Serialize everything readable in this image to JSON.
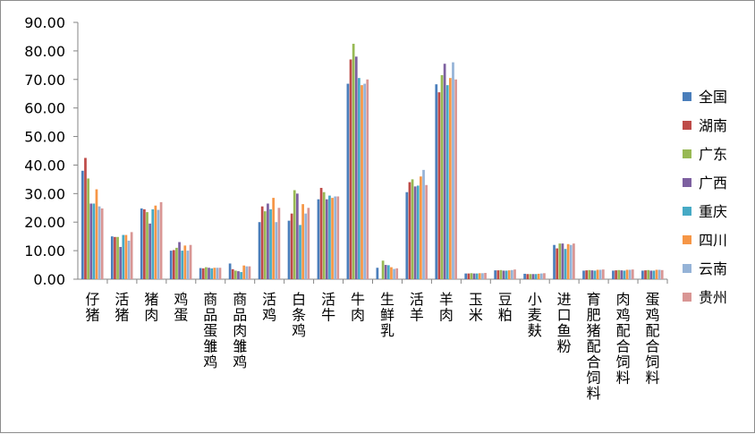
{
  "chart_data": {
    "type": "bar",
    "title": "",
    "xlabel": "",
    "ylabel": "",
    "ylim": [
      0,
      90
    ],
    "yticks": [
      "0.00",
      "10.00",
      "20.00",
      "30.00",
      "40.00",
      "50.00",
      "60.00",
      "70.00",
      "80.00",
      "90.00"
    ],
    "grid": false,
    "legend_position": "right",
    "categories": [
      "仔猪",
      "活猪",
      "猪肉",
      "鸡蛋",
      "商品蛋雏鸡",
      "商品肉雏鸡",
      "活鸡",
      "白条鸡",
      "活牛",
      "牛肉",
      "生鲜乳",
      "活羊",
      "羊肉",
      "玉米",
      "豆粕",
      "小麦麸",
      "进口鱼粉",
      "育肥猪配合饲料",
      "肉鸡配合饲料",
      "蛋鸡配合饲料"
    ],
    "series": [
      {
        "name": "全国",
        "color": "#4a7ebb",
        "values": [
          38.0,
          15.0,
          24.8,
          10.0,
          3.9,
          5.5,
          20.0,
          20.5,
          28.0,
          68.5,
          4.0,
          30.5,
          68.3,
          2.0,
          3.1,
          1.9,
          12.0,
          3.0,
          3.0,
          3.0
        ]
      },
      {
        "name": "湖南",
        "color": "#be4b48",
        "values": [
          42.5,
          14.8,
          24.5,
          10.2,
          3.8,
          3.5,
          25.5,
          23.0,
          32.0,
          77.0,
          0,
          34.0,
          65.5,
          2.0,
          3.1,
          1.8,
          10.8,
          3.1,
          3.1,
          3.1
        ]
      },
      {
        "name": "广东",
        "color": "#98b954",
        "values": [
          35.3,
          14.8,
          23.5,
          11.0,
          4.2,
          3.0,
          23.8,
          31.2,
          30.5,
          82.5,
          6.5,
          35.0,
          71.5,
          2.1,
          3.2,
          1.8,
          12.5,
          3.2,
          3.2,
          3.2
        ]
      },
      {
        "name": "广西",
        "color": "#7d60a0",
        "values": [
          26.5,
          11.3,
          19.5,
          13.0,
          4.0,
          2.8,
          26.5,
          30.0,
          28.0,
          78.0,
          5.0,
          32.5,
          75.5,
          2.0,
          3.0,
          1.8,
          12.5,
          3.1,
          3.1,
          3.0
        ]
      },
      {
        "name": "重庆",
        "color": "#46aac5",
        "values": [
          26.5,
          15.5,
          24.5,
          10.0,
          3.8,
          2.5,
          24.5,
          19.0,
          29.3,
          70.5,
          4.9,
          32.8,
          68.0,
          2.0,
          3.0,
          1.8,
          10.6,
          3.0,
          3.0,
          3.0
        ]
      },
      {
        "name": "四川",
        "color": "#f69646",
        "values": [
          31.5,
          15.5,
          25.8,
          11.8,
          4.0,
          4.8,
          28.5,
          26.3,
          28.5,
          68.0,
          4.2,
          36.0,
          70.5,
          2.1,
          3.1,
          1.9,
          12.3,
          3.3,
          3.3,
          3.3
        ]
      },
      {
        "name": "云南",
        "color": "#95b3d7",
        "values": [
          25.5,
          13.5,
          24.3,
          10.0,
          4.0,
          4.5,
          20.0,
          23.0,
          29.0,
          68.5,
          3.6,
          38.3,
          76.0,
          2.1,
          3.2,
          2.0,
          12.0,
          3.3,
          3.3,
          3.3
        ]
      },
      {
        "name": "贵州",
        "color": "#d99694",
        "values": [
          24.8,
          16.5,
          27.0,
          12.0,
          4.0,
          4.5,
          25.0,
          25.0,
          29.0,
          70.0,
          3.8,
          33.0,
          70.0,
          2.2,
          3.4,
          2.1,
          12.5,
          3.4,
          3.4,
          3.2
        ]
      }
    ]
  }
}
